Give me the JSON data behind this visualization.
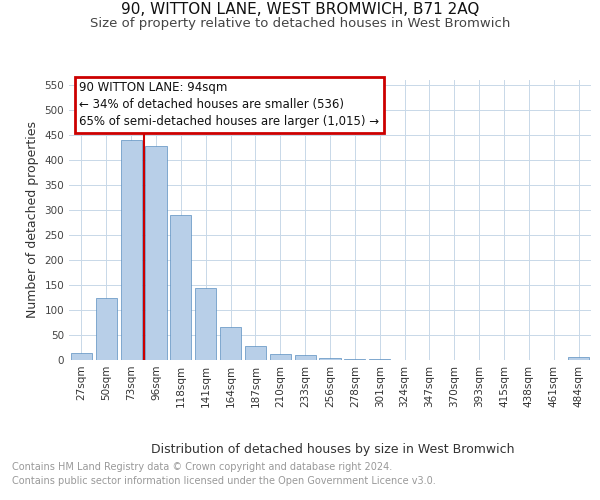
{
  "title": "90, WITTON LANE, WEST BROMWICH, B71 2AQ",
  "subtitle": "Size of property relative to detached houses in West Bromwich",
  "xlabel": "Distribution of detached houses by size in West Bromwich",
  "ylabel": "Number of detached properties",
  "categories": [
    "27sqm",
    "50sqm",
    "73sqm",
    "96sqm",
    "118sqm",
    "141sqm",
    "164sqm",
    "187sqm",
    "210sqm",
    "233sqm",
    "256sqm",
    "278sqm",
    "301sqm",
    "324sqm",
    "347sqm",
    "370sqm",
    "393sqm",
    "415sqm",
    "438sqm",
    "461sqm",
    "484sqm"
  ],
  "values": [
    15,
    125,
    440,
    428,
    290,
    145,
    67,
    28,
    13,
    10,
    5,
    3,
    2,
    1,
    1,
    1,
    1,
    1,
    1,
    1,
    6
  ],
  "bar_color": "#b8cfe8",
  "bar_edge_color": "#5a8fc0",
  "vline_x": 2.5,
  "vline_color": "#cc0000",
  "annotation_title": "90 WITTON LANE: 94sqm",
  "annotation_line1": "← 34% of detached houses are smaller (536)",
  "annotation_line2": "65% of semi-detached houses are larger (1,015) →",
  "annotation_box_color": "#cc0000",
  "ylim": [
    0,
    560
  ],
  "yticks": [
    0,
    50,
    100,
    150,
    200,
    250,
    300,
    350,
    400,
    450,
    500,
    550
  ],
  "footer_line1": "Contains HM Land Registry data © Crown copyright and database right 2024.",
  "footer_line2": "Contains public sector information licensed under the Open Government Licence v3.0.",
  "bg_color": "#ffffff",
  "grid_color": "#c8d8e8",
  "title_fontsize": 11,
  "subtitle_fontsize": 9.5,
  "axis_label_fontsize": 9,
  "tick_fontsize": 7.5,
  "footer_fontsize": 7.0,
  "annotation_fontsize": 8.5
}
